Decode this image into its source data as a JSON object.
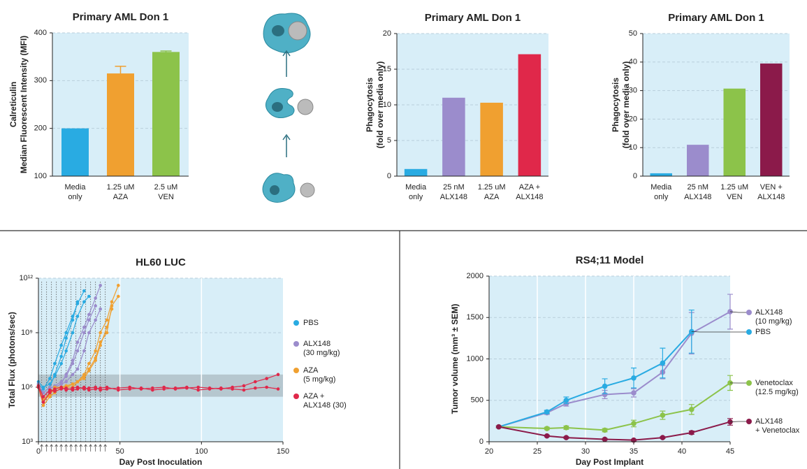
{
  "chart_data": [
    {
      "type": "bar",
      "title": "Primary AML Don 1",
      "ylabel": [
        "Calreticulin",
        "Median Fluorescent Intensity (MFI)"
      ],
      "categories": [
        [
          "Media",
          "only"
        ],
        [
          "1.25 uM",
          "AZA"
        ],
        [
          "2.5 uM",
          "VEN"
        ]
      ],
      "values": [
        200,
        315,
        360
      ],
      "errors": [
        null,
        15,
        2
      ],
      "colors": [
        "#29abe2",
        "#f0a030",
        "#8cc34a"
      ],
      "ylim": [
        100,
        400
      ],
      "yticks": [
        100,
        200,
        300,
        400
      ],
      "grid": true
    },
    {
      "type": "bar",
      "title": "Primary AML Don 1",
      "ylabel": [
        "Phagocytosis",
        "(fold over media only)"
      ],
      "categories": [
        [
          "Media",
          "only"
        ],
        [
          "25 nM",
          "ALX148"
        ],
        [
          "1.25 uM",
          "AZA"
        ],
        [
          "AZA +",
          "ALX148"
        ]
      ],
      "values": [
        1,
        11,
        10.3,
        17.1
      ],
      "colors": [
        "#29abe2",
        "#9b8ccc",
        "#f0a030",
        "#e0284a"
      ],
      "ylim": [
        0,
        20
      ],
      "yticks": [
        0,
        5,
        10,
        15,
        20
      ],
      "grid": true
    },
    {
      "type": "bar",
      "title": "Primary AML Don 1",
      "ylabel": [
        "Phagocytosis",
        "(fold over media only)"
      ],
      "categories": [
        [
          "Media",
          "only"
        ],
        [
          "25 nM",
          "ALX148"
        ],
        [
          "1.25 uM",
          "VEN"
        ],
        [
          "VEN +",
          "ALX148"
        ]
      ],
      "values": [
        1,
        11,
        30.7,
        39.5
      ],
      "colors": [
        "#29abe2",
        "#9b8ccc",
        "#8cc34a",
        "#8b1a4a"
      ],
      "ylim": [
        0,
        50
      ],
      "yticks": [
        0,
        10,
        20,
        30,
        40,
        50
      ],
      "grid": true
    },
    {
      "type": "spaghetti",
      "title": "HL60 LUC",
      "xlabel": "Day Post Inoculation",
      "ylabel": "Total Flux (photons/sec)",
      "log_scale": true,
      "xlim": [
        0,
        150
      ],
      "xticks": [
        0,
        50,
        100,
        150
      ],
      "ylim": [
        1000,
        1000000000000
      ],
      "yticks": [
        {
          "value": 1000,
          "label": "10³"
        },
        {
          "value": 1000000,
          "label": "10⁶"
        },
        {
          "value": 1000000000,
          "label": "10⁹"
        },
        {
          "value": 1000000000000,
          "label": "10¹²"
        }
      ],
      "band": [
        300000,
        5000000
      ],
      "dosing_days": [
        2,
        5,
        8,
        11,
        14,
        17,
        20,
        23,
        26,
        29,
        32,
        35,
        38,
        41
      ],
      "grid": true,
      "series": [
        {
          "name": [
            "PBS"
          ],
          "color": "#29abe2",
          "lines": [
            {
              "x": [
                0,
                3,
                7,
                10,
                14,
                17,
                21,
                24,
                28
              ],
              "values": [
                1500000,
                800000,
                3000000,
                20000000,
                200000000,
                1000000000,
                8000000000,
                40000000000,
                200000000000
              ]
            },
            {
              "x": [
                0,
                3,
                7,
                10,
                14,
                17,
                21,
                24
              ],
              "values": [
                1000000,
                500000,
                1000000,
                5000000,
                50000000,
                500000000,
                5000000000,
                50000000000
              ]
            },
            {
              "x": [
                0,
                3,
                7,
                10,
                14,
                17,
                21,
                24,
                28,
                31
              ],
              "values": [
                2000000,
                1000000,
                1500000,
                4000000,
                20000000,
                100000000,
                1000000000,
                8000000000,
                50000000000,
                100000000000
              ]
            }
          ]
        },
        {
          "name": [
            "ALX148",
            "(30 mg/kg)"
          ],
          "color": "#9b8ccc",
          "lines": [
            {
              "x": [
                0,
                3,
                7,
                10,
                14,
                17,
                21,
                24,
                28,
                31,
                35,
                38
              ],
              "values": [
                1000000,
                200000,
                500000,
                1000000,
                1500000,
                5000000,
                30000000,
                300000000,
                2000000000,
                10000000000,
                80000000000,
                400000000000
              ]
            },
            {
              "x": [
                0,
                3,
                7,
                10,
                14,
                17,
                21,
                24,
                28,
                31,
                35
              ],
              "values": [
                1000000,
                300000,
                800000,
                1200000,
                2000000,
                4000000,
                20000000,
                100000000,
                1000000000,
                5000000000,
                30000000000
              ]
            },
            {
              "x": [
                0,
                3,
                7,
                10,
                14,
                17,
                21,
                24,
                28,
                31,
                35,
                38
              ],
              "values": [
                1500000,
                500000,
                1000000,
                1000000,
                1500000,
                2000000,
                5000000,
                10000000,
                100000000,
                1000000000,
                5000000000,
                20000000000
              ]
            }
          ]
        },
        {
          "name": [
            "AZA",
            "(5 mg/kg)"
          ],
          "color": "#f0a030",
          "lines": [
            {
              "x": [
                0,
                3,
                7,
                10,
                14,
                17,
                21,
                24,
                28,
                31,
                35,
                38,
                42,
                45,
                49
              ],
              "values": [
                1000000,
                100000,
                300000,
                500000,
                1000000,
                1000000,
                1500000,
                2000000,
                5000000,
                20000000,
                100000000,
                1000000000,
                5000000000,
                50000000000,
                400000000000
              ]
            },
            {
              "x": [
                0,
                3,
                7,
                10,
                14,
                17,
                21,
                24,
                28,
                31,
                35,
                38,
                42,
                45
              ],
              "values": [
                1200000,
                150000,
                400000,
                800000,
                1000000,
                1200000,
                1500000,
                2000000,
                3000000,
                8000000,
                30000000,
                200000000,
                2000000000,
                20000000000
              ]
            },
            {
              "x": [
                0,
                3,
                7,
                10,
                14,
                17,
                21,
                24,
                28,
                31,
                35,
                38,
                42,
                45,
                49
              ],
              "values": [
                1000000,
                200000,
                500000,
                1000000,
                1000000,
                1000000,
                1000000,
                2000000,
                4000000,
                10000000,
                40000000,
                300000000,
                1000000000,
                30000000000,
                100000000000
              ]
            }
          ]
        },
        {
          "name": [
            "AZA +",
            "ALX148 (30)"
          ],
          "color": "#e0284a",
          "lines": [
            {
              "x": [
                0,
                3,
                7,
                10,
                14,
                17,
                21,
                24,
                28,
                31,
                35,
                38,
                42,
                49,
                56,
                63,
                70,
                77,
                84,
                91,
                98,
                105,
                112,
                119,
                126,
                133,
                140,
                147
              ],
              "values": [
                1000000,
                150000,
                500000,
                800000,
                1000000,
                700000,
                900000,
                1000000,
                800000,
                900000,
                1000000,
                700000,
                800000,
                900000,
                1000000,
                800000,
                900000,
                1000000,
                800000,
                900000,
                1000000,
                900000,
                800000,
                1000000,
                1200000,
                2000000,
                3000000,
                5000000
              ]
            },
            {
              "x": [
                0,
                3,
                7,
                10,
                14,
                17,
                21,
                24,
                28,
                31,
                35,
                38,
                42,
                49,
                56,
                63,
                70,
                77,
                84,
                91,
                98,
                105,
                112,
                119,
                126,
                133,
                140,
                147
              ],
              "values": [
                1200000,
                300000,
                700000,
                600000,
                800000,
                900000,
                700000,
                800000,
                1000000,
                700000,
                800000,
                900000,
                1000000,
                700000,
                800000,
                900000,
                700000,
                800000,
                900000,
                1000000,
                700000,
                800000,
                900000,
                800000,
                700000,
                900000,
                1000000,
                800000
              ]
            }
          ]
        }
      ]
    },
    {
      "type": "line",
      "title": "RS4;11 Model",
      "xlabel": "Day Post Implant",
      "ylabel": "Tumor volume (mm³ ± SEM)",
      "x": [
        21,
        26,
        28,
        32,
        35,
        38,
        41,
        45
      ],
      "xlim": [
        20,
        45
      ],
      "xticks": [
        20,
        25,
        30,
        35,
        40,
        45
      ],
      "ylim": [
        0,
        2000
      ],
      "yticks": [
        0,
        500,
        1000,
        1500,
        2000
      ],
      "grid": true,
      "series": [
        {
          "name": [
            "ALX148",
            "(10 mg/kg)"
          ],
          "color": "#9b8ccc",
          "values": [
            180,
            350,
            460,
            570,
            590,
            840,
            1310,
            1570
          ],
          "errors": [
            10,
            20,
            30,
            50,
            50,
            80,
            250,
            210
          ]
        },
        {
          "name": [
            "PBS"
          ],
          "color": "#29abe2",
          "values": [
            180,
            360,
            500,
            670,
            770,
            950,
            1330,
            null
          ],
          "errors": [
            10,
            20,
            40,
            90,
            120,
            180,
            260,
            null
          ]
        },
        {
          "name": [
            "Venetoclax",
            "(12.5 mg/kg)"
          ],
          "color": "#8cc34a",
          "values": [
            180,
            160,
            170,
            140,
            220,
            320,
            390,
            710
          ],
          "errors": [
            10,
            15,
            20,
            20,
            40,
            50,
            60,
            90
          ]
        },
        {
          "name": [
            "ALX148",
            "+ Venetoclax"
          ],
          "color": "#8b1a4a",
          "values": [
            180,
            70,
            50,
            30,
            20,
            50,
            110,
            240
          ],
          "errors": [
            10,
            10,
            10,
            10,
            10,
            10,
            20,
            40
          ]
        }
      ]
    }
  ]
}
